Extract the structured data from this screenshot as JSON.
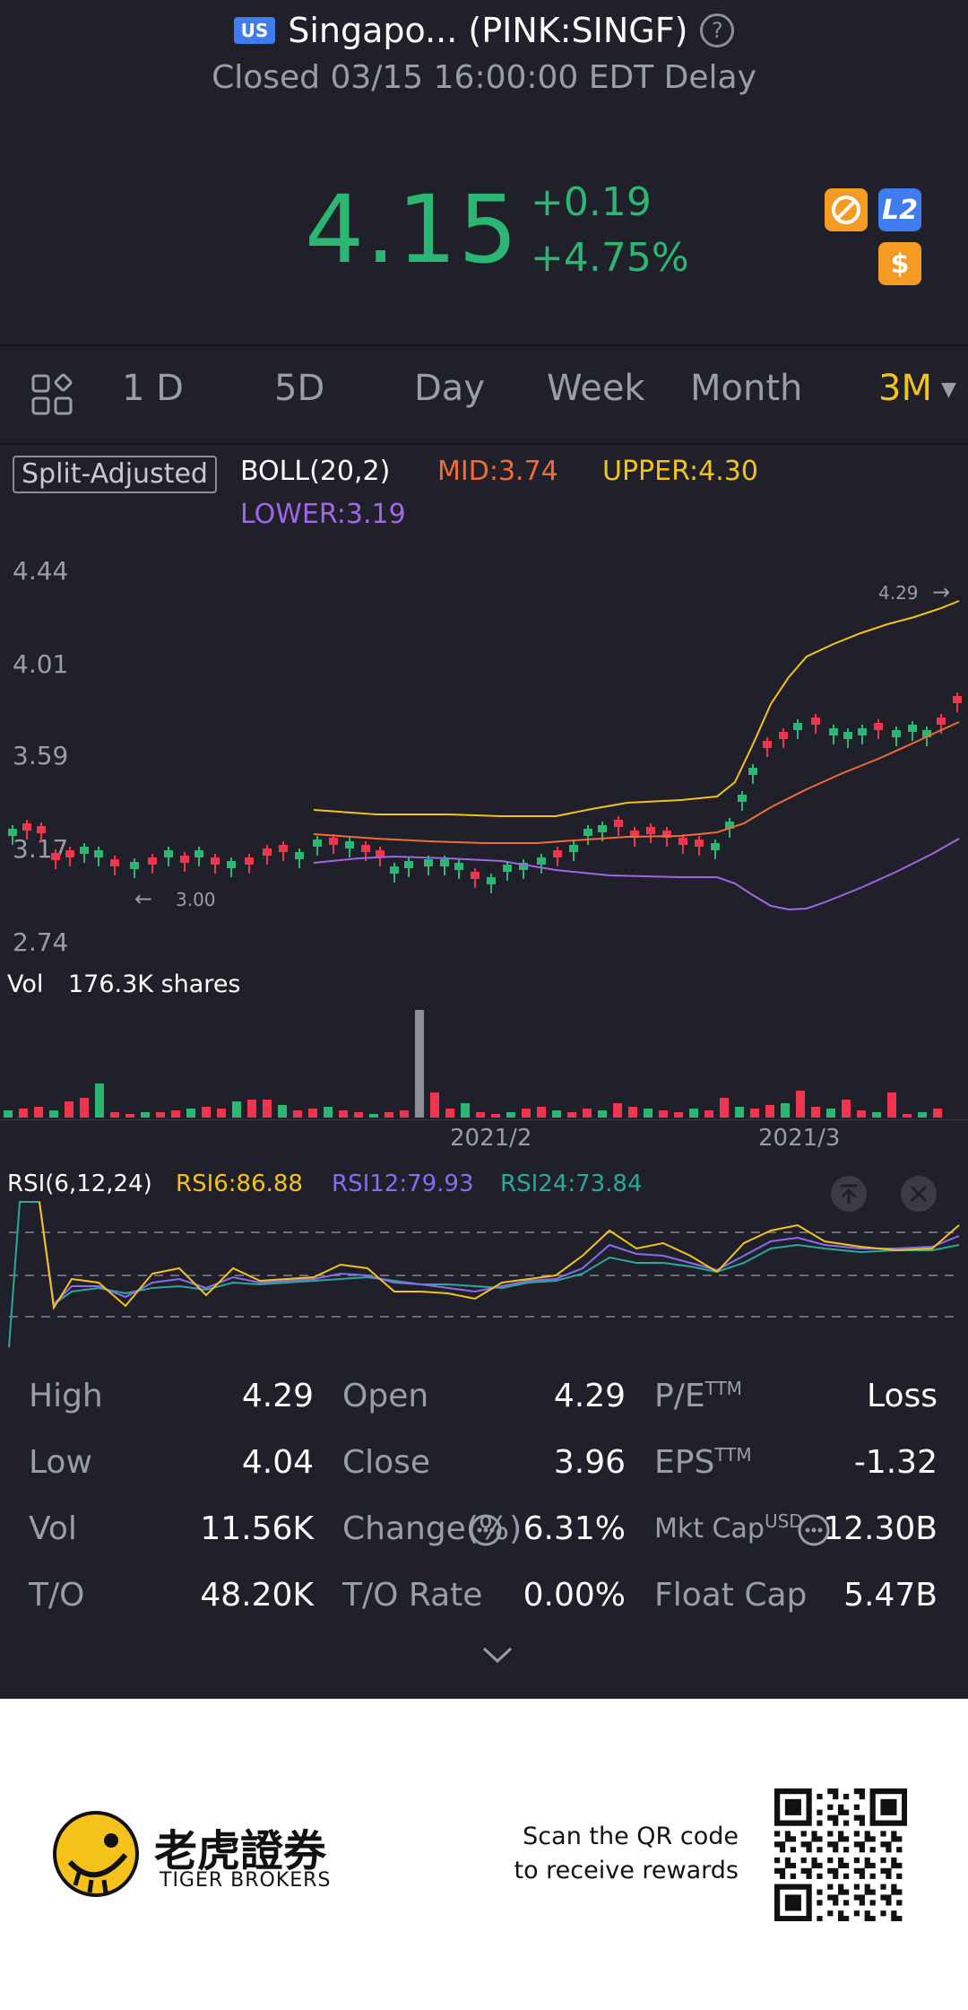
{
  "header": {
    "market_badge": "US",
    "title": "Singapo... (PINK:SINGF)",
    "status": "Closed 03/15 16:00:00 EDT Delay"
  },
  "quote": {
    "price": "4.15",
    "change": "+0.19",
    "change_pct": "+4.75%",
    "badge_l2": "L2",
    "badge_dollar": "$",
    "accent_up": "#2bb673",
    "accent_down": "#f0364f"
  },
  "tabs": {
    "items": [
      "1 D",
      "5D",
      "Day",
      "Week",
      "Month",
      "3M"
    ],
    "active": "3M"
  },
  "indicators": {
    "split": "Split-Adjusted",
    "boll": "BOLL(20,2)",
    "mid": "MID:3.74",
    "upper": "UPPER:4.30",
    "lower": "LOWER:3.19"
  },
  "price_axis": [
    "4.44",
    "4.01",
    "3.59",
    "3.17",
    "2.74"
  ],
  "chart_annotations": {
    "high_mark": "4.29",
    "low_mark": "3.00"
  },
  "volume": {
    "label": "Vol",
    "value": "176.3K shares"
  },
  "date_axis": [
    "2021/2",
    "2021/3"
  ],
  "rsi": {
    "label": "RSI(6,12,24)",
    "rsi6": "RSI6:86.88",
    "rsi12": "RSI12:79.93",
    "rsi24": "RSI24:73.84"
  },
  "stats": [
    {
      "label": "High",
      "value": "4.29"
    },
    {
      "label": "Open",
      "value": "4.29"
    },
    {
      "label": "P/E",
      "sup": "TTM",
      "value": "Loss"
    },
    {
      "label": "Low",
      "value": "4.04"
    },
    {
      "label": "Close",
      "value": "3.96"
    },
    {
      "label": "EPS",
      "sup": "TTM",
      "value": "-1.32"
    },
    {
      "label": "Vol",
      "value": "11.56K"
    },
    {
      "label": "Change(%)",
      "value": "6.31%"
    },
    {
      "label": "Mkt Cap",
      "sup": "USD",
      "value": "12.30B"
    },
    {
      "label": "T/O",
      "value": "48.20K"
    },
    {
      "label": "T/O Rate",
      "value": "0.00%"
    },
    {
      "label": "Float Cap",
      "value": "5.47B"
    }
  ],
  "footer": {
    "brand_cn": "老虎證券",
    "brand_en": "TIGER BROKERS",
    "scan_line1": "Scan the QR code",
    "scan_line2": "to receive rewards"
  }
}
